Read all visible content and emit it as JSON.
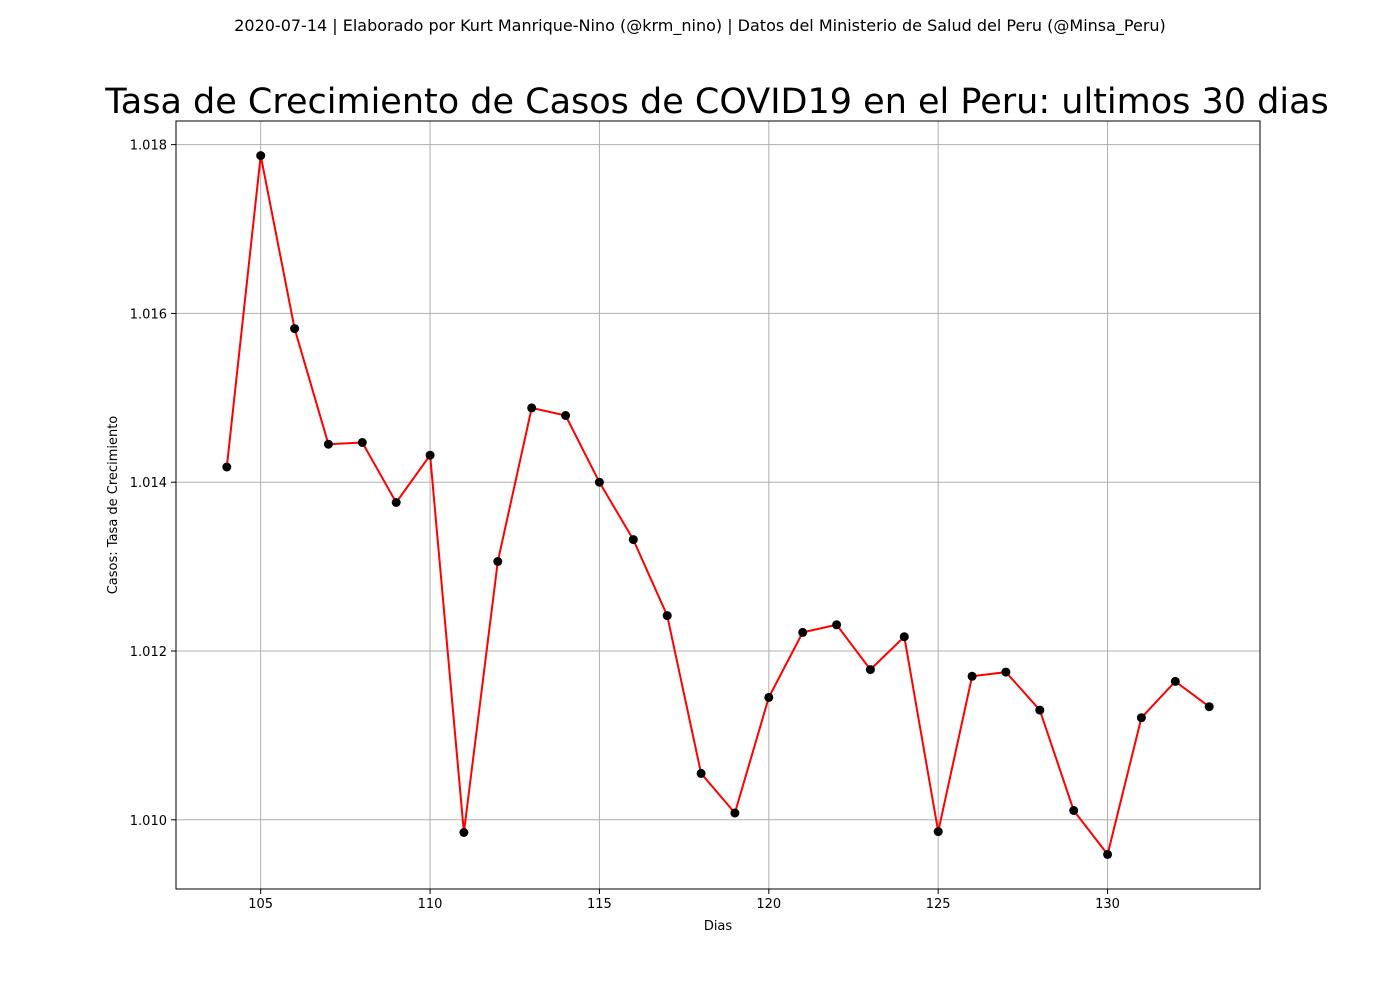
{
  "suptitle": "2020-07-14 | Elaborado por Kurt Manrique-Nino (@krm_nino) | Datos del Ministerio de Salud del Peru (@Minsa_Peru)",
  "chart_data": {
    "type": "line",
    "title": "Tasa de Crecimiento de Casos de COVID19 en el Peru: ultimos 30 dias",
    "xlabel": "Dias",
    "ylabel": "Casos: Tasa de Crecimiento",
    "xlim": [
      102.5,
      134.5
    ],
    "ylim": [
      1.00918,
      1.01828
    ],
    "xticks": [
      105,
      110,
      115,
      120,
      125,
      130
    ],
    "xtick_labels": [
      "105",
      "110",
      "115",
      "120",
      "125",
      "130"
    ],
    "yticks": [
      1.01,
      1.012,
      1.014,
      1.016,
      1.018
    ],
    "ytick_labels": [
      "1.010",
      "1.012",
      "1.014",
      "1.016",
      "1.018"
    ],
    "grid": true,
    "line_color": "#ff0000",
    "marker_color": "#000000",
    "x": [
      104,
      105,
      106,
      107,
      108,
      109,
      110,
      111,
      112,
      113,
      114,
      115,
      116,
      117,
      118,
      119,
      120,
      121,
      122,
      123,
      124,
      125,
      126,
      127,
      128,
      129,
      130,
      131,
      132,
      133
    ],
    "y": [
      1.01418,
      1.01787,
      1.01582,
      1.01445,
      1.01447,
      1.01376,
      1.01432,
      1.00985,
      1.01306,
      1.01488,
      1.01479,
      1.014,
      1.01332,
      1.01242,
      1.01055,
      1.01008,
      1.01145,
      1.01222,
      1.01231,
      1.01178,
      1.01217,
      1.00986,
      1.0117,
      1.01175,
      1.0113,
      1.01011,
      1.00959,
      1.01121,
      1.01164,
      1.01134
    ]
  }
}
